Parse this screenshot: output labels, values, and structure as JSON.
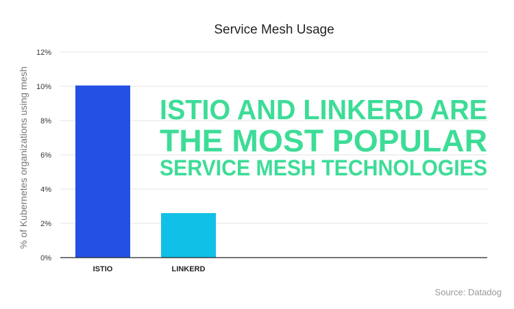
{
  "chart_data": {
    "type": "bar",
    "title": "Service Mesh Usage",
    "ylabel": "% of Kubernetes organizations using mesh",
    "xlabel": "",
    "categories": [
      "ISTIO",
      "LINKERD"
    ],
    "values": [
      10.05,
      2.6
    ],
    "ylim": [
      0,
      12
    ],
    "yticks": [
      0,
      2,
      4,
      6,
      8,
      10,
      12
    ],
    "ytick_labels": [
      "0%",
      "2%",
      "4%",
      "6%",
      "8%",
      "10%",
      "12%"
    ],
    "colors": [
      "#2450e4",
      "#11c0e6"
    ],
    "grid": true,
    "legend": "none",
    "annotation": {
      "lines": [
        "ISTIO AND LINKERD ARE",
        "THE MOST POPULAR",
        "SERVICE MESH TECHNOLOGIES"
      ],
      "color": "#3ddc97"
    },
    "source": "Source: Datadog"
  }
}
